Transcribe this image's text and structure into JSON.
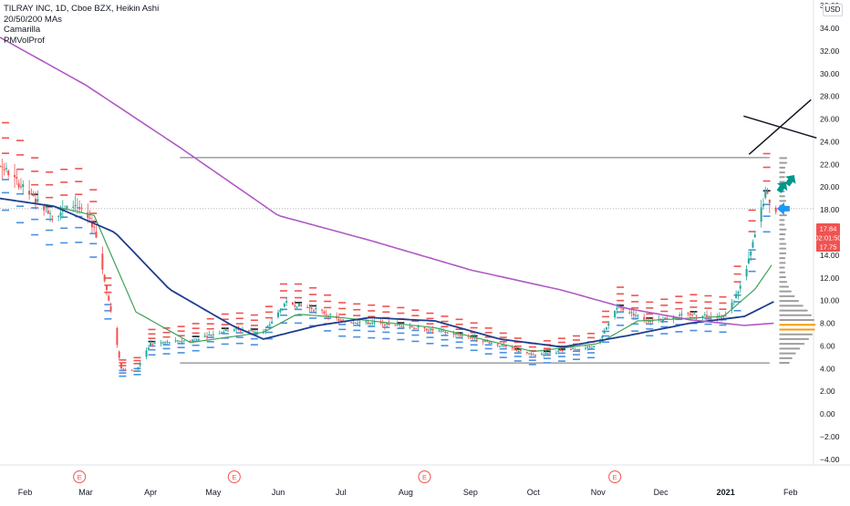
{
  "header": {
    "symbol_line": "TILRAY INC, 1D, Cboe BZX, Heikin Ashi",
    "indicators": [
      "20/50/200 MAs",
      "Camarilla",
      "PMVolProf"
    ],
    "currency_button": "USD"
  },
  "price_tags": [
    {
      "label": "17.84",
      "color": "#f05350"
    },
    {
      "label": "02:01:50",
      "color": "#f05350"
    },
    {
      "label": "17.75",
      "color": "#f05350"
    }
  ],
  "colors": {
    "up": "#26a69a",
    "down": "#ef5350",
    "ma20": "#3fa15a",
    "ma50": "#1e3d8f",
    "ma200": "#b05ac4",
    "pivot_red": "#ef5350",
    "pivot_blue": "#4a90e2",
    "pivot_black": "#131722",
    "volume_profile": "#9e9e9e",
    "poc": "#ff9800",
    "earnings": "#ef5350",
    "arrow_green": "#009688",
    "arrow_blue": "#2196f3"
  },
  "chart_data": {
    "type": "candlestick",
    "title": "TILRAY INC, 1D, Cboe BZX, Heikin Ashi",
    "x_axis": {
      "start": "2020-01-20",
      "end": "2021-02-12",
      "tick_labels": [
        {
          "label": "Feb",
          "date": "2020-02-01"
        },
        {
          "label": "Mar",
          "date": "2020-03-01"
        },
        {
          "label": "Apr",
          "date": "2020-04-01"
        },
        {
          "label": "May",
          "date": "2020-05-01"
        },
        {
          "label": "Jun",
          "date": "2020-06-01"
        },
        {
          "label": "Jul",
          "date": "2020-07-01"
        },
        {
          "label": "Aug",
          "date": "2020-08-01"
        },
        {
          "label": "Sep",
          "date": "2020-09-01"
        },
        {
          "label": "Oct",
          "date": "2020-10-01"
        },
        {
          "label": "Nov",
          "date": "2020-11-01"
        },
        {
          "label": "Dec",
          "date": "2020-12-01"
        },
        {
          "label": "2021",
          "date": "2021-01-01",
          "bold": true
        },
        {
          "label": "Feb",
          "date": "2021-02-01"
        }
      ]
    },
    "y_axis": {
      "min": -4.5,
      "max": 36.5,
      "scale": "linear",
      "tick_labels": [
        "36.00",
        "34.00",
        "32.00",
        "30.00",
        "28.00",
        "26.00",
        "24.00",
        "22.00",
        "20.00",
        "18.00",
        "16.00",
        "14.00",
        "12.00",
        "10.00",
        "8.00",
        "6.00",
        "4.00",
        "2.00",
        "0.00",
        "−2.00",
        "−4.00"
      ],
      "tick_values": [
        36,
        34,
        32,
        30,
        28,
        26,
        24,
        22,
        20,
        18,
        16,
        14,
        12,
        10,
        8,
        6,
        4,
        2,
        0,
        -2,
        -4
      ]
    },
    "grid": false,
    "price_anchors": [
      {
        "date": "2020-01-20",
        "price": 22.0
      },
      {
        "date": "2020-02-05",
        "price": 19.0
      },
      {
        "date": "2020-02-15",
        "price": 17.5
      },
      {
        "date": "2020-02-25",
        "price": 18.5
      },
      {
        "date": "2020-03-05",
        "price": 16.5
      },
      {
        "date": "2020-03-12",
        "price": 10.0
      },
      {
        "date": "2020-03-18",
        "price": 4.0
      },
      {
        "date": "2020-03-25",
        "price": 3.8
      },
      {
        "date": "2020-04-01",
        "price": 6.2
      },
      {
        "date": "2020-04-20",
        "price": 6.5
      },
      {
        "date": "2020-05-10",
        "price": 7.5
      },
      {
        "date": "2020-05-25",
        "price": 7.2
      },
      {
        "date": "2020-06-05",
        "price": 9.8
      },
      {
        "date": "2020-06-20",
        "price": 9.2
      },
      {
        "date": "2020-07-01",
        "price": 8.2
      },
      {
        "date": "2020-08-01",
        "price": 7.8
      },
      {
        "date": "2020-09-01",
        "price": 6.8
      },
      {
        "date": "2020-10-01",
        "price": 5.2
      },
      {
        "date": "2020-11-01",
        "price": 6.0
      },
      {
        "date": "2020-11-10",
        "price": 9.5
      },
      {
        "date": "2020-11-25",
        "price": 8.2
      },
      {
        "date": "2020-12-15",
        "price": 8.8
      },
      {
        "date": "2021-01-01",
        "price": 8.6
      },
      {
        "date": "2021-01-10",
        "price": 12.0
      },
      {
        "date": "2021-01-20",
        "price": 19.5
      },
      {
        "date": "2021-01-25",
        "price": 17.8
      }
    ],
    "moving_averages": [
      {
        "period": 20,
        "points": [
          {
            "date": "2020-02-10",
            "value": 18.5
          },
          {
            "date": "2020-03-05",
            "value": 17.5
          },
          {
            "date": "2020-03-25",
            "value": 9.0
          },
          {
            "date": "2020-04-20",
            "value": 6.3
          },
          {
            "date": "2020-05-25",
            "value": 7.2
          },
          {
            "date": "2020-06-10",
            "value": 8.8
          },
          {
            "date": "2020-07-01",
            "value": 8.5
          },
          {
            "date": "2020-08-15",
            "value": 7.6
          },
          {
            "date": "2020-10-01",
            "value": 5.5
          },
          {
            "date": "2020-11-01",
            "value": 6.2
          },
          {
            "date": "2020-11-20",
            "value": 8.2
          },
          {
            "date": "2020-12-31",
            "value": 8.6
          },
          {
            "date": "2021-01-15",
            "value": 11.0
          },
          {
            "date": "2021-01-24",
            "value": 13.4
          }
        ]
      },
      {
        "period": 50,
        "points": [
          {
            "date": "2020-01-20",
            "value": 19.0
          },
          {
            "date": "2020-02-15",
            "value": 18.3
          },
          {
            "date": "2020-03-15",
            "value": 16.0
          },
          {
            "date": "2020-04-10",
            "value": 11.0
          },
          {
            "date": "2020-05-10",
            "value": 7.8
          },
          {
            "date": "2020-05-25",
            "value": 6.6
          },
          {
            "date": "2020-06-20",
            "value": 7.8
          },
          {
            "date": "2020-07-15",
            "value": 8.5
          },
          {
            "date": "2020-08-15",
            "value": 8.2
          },
          {
            "date": "2020-09-15",
            "value": 6.6
          },
          {
            "date": "2020-10-15",
            "value": 5.9
          },
          {
            "date": "2020-11-15",
            "value": 6.9
          },
          {
            "date": "2020-12-15",
            "value": 8.0
          },
          {
            "date": "2021-01-10",
            "value": 8.6
          },
          {
            "date": "2021-01-24",
            "value": 9.9
          }
        ]
      },
      {
        "period": 200,
        "points": [
          {
            "date": "2020-01-20",
            "value": 33.2
          },
          {
            "date": "2020-03-01",
            "value": 29.0
          },
          {
            "date": "2020-04-15",
            "value": 23.5
          },
          {
            "date": "2020-06-01",
            "value": 17.5
          },
          {
            "date": "2020-07-15",
            "value": 15.3
          },
          {
            "date": "2020-09-01",
            "value": 12.7
          },
          {
            "date": "2020-10-15",
            "value": 10.9
          },
          {
            "date": "2020-11-15",
            "value": 9.3
          },
          {
            "date": "2020-12-15",
            "value": 8.3
          },
          {
            "date": "2021-01-10",
            "value": 7.8
          },
          {
            "date": "2021-01-24",
            "value": 8.0
          }
        ]
      }
    ],
    "horizontal_lines": [
      {
        "value": 22.6,
        "from": "2020-04-15",
        "to": "2021-01-22"
      },
      {
        "value": 4.5,
        "from": "2020-04-15",
        "to": "2021-01-22"
      },
      {
        "value": 18.1,
        "from": "2020-01-20",
        "to": "2021-02-12",
        "style": "dotted"
      }
    ],
    "earnings_markers": [
      {
        "label": "E",
        "date": "2020-02-27"
      },
      {
        "label": "E",
        "date": "2020-05-11"
      },
      {
        "label": "E",
        "date": "2020-08-10"
      },
      {
        "label": "E",
        "date": "2020-11-09"
      }
    ],
    "volume_profile": {
      "poc_price": 7.8,
      "range": [
        4.5,
        22.6
      ]
    },
    "cross_annotation": {
      "center_date": "2021-01-27",
      "center_price": 25.3
    }
  }
}
